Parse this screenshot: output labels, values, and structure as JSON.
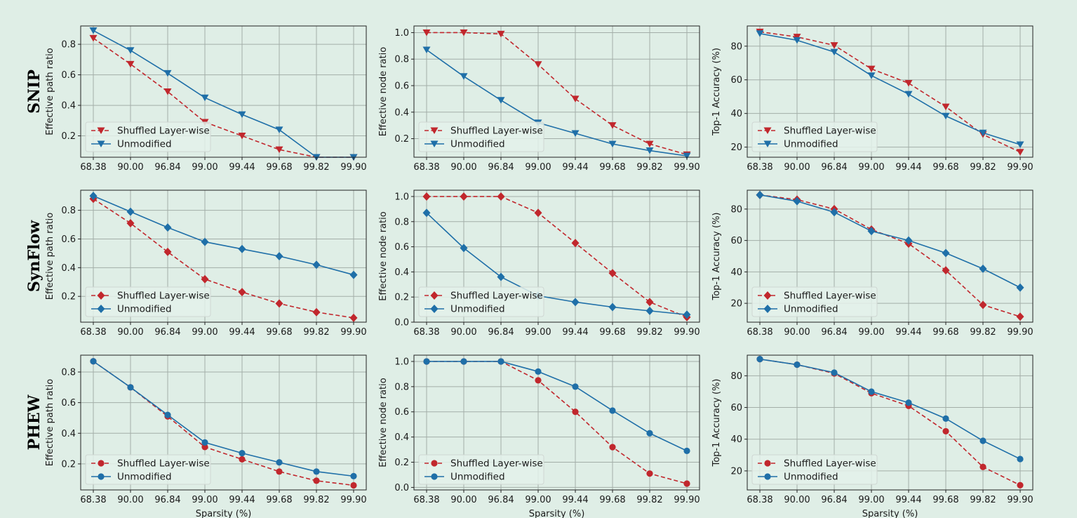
{
  "chart_data": {
    "type": "line",
    "layout": "3x3 grid",
    "row_labels": [
      "SNIP",
      "SynFlow",
      "PHEW"
    ],
    "x_tick_labels": [
      "68.38",
      "90.00",
      "96.84",
      "99.00",
      "99.44",
      "99.68",
      "99.82",
      "99.90"
    ],
    "x_axis_scale": "categorical (evenly spaced)",
    "xlabel": "Sparsity (%)",
    "grid": true,
    "legend_placement": "lower-left",
    "series_names": [
      "Shuffled Layer-wise",
      "Unmodified"
    ],
    "series_colors": {
      "Shuffled Layer-wise": "#c1272d",
      "Unmodified": "#1f6fa8"
    },
    "series_styles": {
      "Shuffled Layer-wise": "dashed",
      "Unmodified": "solid"
    },
    "row_markers": {
      "SNIP": "triangle-down",
      "SynFlow": "diamond",
      "PHEW": "circle"
    },
    "panels": [
      {
        "row": 0,
        "col": 0,
        "ylabel": "Effective path ratio",
        "ylim": [
          0.06,
          0.92
        ],
        "yticks": [
          0.2,
          0.4,
          0.6,
          0.8
        ],
        "ytick_labels": [
          "0.2",
          "0.4",
          "0.6",
          "0.8"
        ],
        "series": [
          {
            "name": "Shuffled Layer-wise",
            "values": [
              0.84,
              0.67,
              0.49,
              0.29,
              0.2,
              0.11,
              0.06,
              0.06
            ]
          },
          {
            "name": "Unmodified",
            "values": [
              0.89,
              0.76,
              0.61,
              0.45,
              0.34,
              0.24,
              0.06,
              0.06
            ]
          }
        ]
      },
      {
        "row": 0,
        "col": 1,
        "ylabel": "Effective node ratio",
        "ylim": [
          0.06,
          1.05
        ],
        "yticks": [
          0.2,
          0.4,
          0.6,
          0.8,
          1.0
        ],
        "ytick_labels": [
          "0.2",
          "0.4",
          "0.6",
          "0.8",
          "1.0"
        ],
        "series": [
          {
            "name": "Shuffled Layer-wise",
            "values": [
              1.0,
              1.0,
              0.99,
              0.76,
              0.5,
              0.3,
              0.16,
              0.08
            ]
          },
          {
            "name": "Unmodified",
            "values": [
              0.87,
              0.67,
              0.49,
              0.32,
              0.24,
              0.16,
              0.11,
              0.07
            ]
          }
        ]
      },
      {
        "row": 0,
        "col": 2,
        "ylabel": "Top-1 Accuracy (%)",
        "ylim": [
          14,
          92
        ],
        "yticks": [
          20,
          40,
          60,
          80
        ],
        "ytick_labels": [
          "20",
          "40",
          "60",
          "80"
        ],
        "series": [
          {
            "name": "Shuffled Layer-wise",
            "values": [
              88.5,
              85.5,
              80.5,
              66.5,
              58,
              44,
              27.5,
              17
            ]
          },
          {
            "name": "Unmodified",
            "values": [
              87.5,
              83.5,
              76.5,
              62.5,
              51.5,
              38.5,
              28.5,
              21.5
            ]
          }
        ]
      },
      {
        "row": 1,
        "col": 0,
        "ylabel": "Effective path ratio",
        "ylim": [
          0.02,
          0.94
        ],
        "yticks": [
          0.2,
          0.4,
          0.6,
          0.8
        ],
        "ytick_labels": [
          "0.2",
          "0.4",
          "0.6",
          "0.8"
        ],
        "series": [
          {
            "name": "Shuffled Layer-wise",
            "values": [
              0.88,
              0.71,
              0.51,
              0.32,
              0.23,
              0.15,
              0.09,
              0.05
            ]
          },
          {
            "name": "Unmodified",
            "values": [
              0.9,
              0.79,
              0.68,
              0.58,
              0.53,
              0.48,
              0.42,
              0.35
            ]
          }
        ]
      },
      {
        "row": 1,
        "col": 1,
        "ylabel": "Effective node ratio",
        "ylim": [
          0.0,
          1.05
        ],
        "yticks": [
          0.0,
          0.2,
          0.4,
          0.6,
          0.8,
          1.0
        ],
        "ytick_labels": [
          "0.0",
          "0.2",
          "0.4",
          "0.6",
          "0.8",
          "1.0"
        ],
        "series": [
          {
            "name": "Shuffled Layer-wise",
            "values": [
              1.0,
              1.0,
              1.0,
              0.87,
              0.63,
              0.39,
              0.16,
              0.04
            ]
          },
          {
            "name": "Unmodified",
            "values": [
              0.87,
              0.59,
              0.36,
              0.21,
              0.16,
              0.12,
              0.09,
              0.06
            ]
          }
        ]
      },
      {
        "row": 1,
        "col": 2,
        "ylabel": "Top-1 Accuracy (%)",
        "ylim": [
          8,
          92
        ],
        "yticks": [
          20,
          40,
          60,
          80
        ],
        "ytick_labels": [
          "20",
          "40",
          "60",
          "80"
        ],
        "series": [
          {
            "name": "Shuffled Layer-wise",
            "values": [
              89,
              86,
              80,
              67,
              58,
              41,
              19,
              11.5
            ]
          },
          {
            "name": "Unmodified",
            "values": [
              89,
              85,
              78,
              66,
              60,
              52,
              42,
              30
            ]
          }
        ]
      },
      {
        "row": 2,
        "col": 0,
        "ylabel": "Effective path ratio",
        "ylim": [
          0.03,
          0.91
        ],
        "yticks": [
          0.2,
          0.4,
          0.6,
          0.8
        ],
        "ytick_labels": [
          "0.2",
          "0.4",
          "0.6",
          "0.8"
        ],
        "series": [
          {
            "name": "Shuffled Layer-wise",
            "values": [
              0.87,
              0.7,
              0.51,
              0.31,
              0.23,
              0.15,
              0.09,
              0.06
            ]
          },
          {
            "name": "Unmodified",
            "values": [
              0.87,
              0.7,
              0.52,
              0.34,
              0.27,
              0.21,
              0.15,
              0.12
            ]
          }
        ]
      },
      {
        "row": 2,
        "col": 1,
        "ylabel": "Effective node ratio",
        "ylim": [
          -0.02,
          1.05
        ],
        "yticks": [
          0.0,
          0.2,
          0.4,
          0.6,
          0.8,
          1.0
        ],
        "ytick_labels": [
          "0.0",
          "0.2",
          "0.4",
          "0.6",
          "0.8",
          "1.0"
        ],
        "series": [
          {
            "name": "Shuffled Layer-wise",
            "values": [
              1.0,
              1.0,
              1.0,
              0.85,
              0.6,
              0.32,
              0.11,
              0.03
            ]
          },
          {
            "name": "Unmodified",
            "values": [
              1.0,
              1.0,
              1.0,
              0.92,
              0.8,
              0.61,
              0.43,
              0.29
            ]
          }
        ]
      },
      {
        "row": 2,
        "col": 2,
        "ylabel": "Top-1 Accuracy (%)",
        "ylim": [
          8,
          93
        ],
        "yticks": [
          20,
          40,
          60,
          80
        ],
        "ytick_labels": [
          "20",
          "40",
          "60",
          "80"
        ],
        "series": [
          {
            "name": "Shuffled Layer-wise",
            "values": [
              90.5,
              87,
              81.5,
              69,
              61,
              45,
              22.5,
              11
            ]
          },
          {
            "name": "Unmodified",
            "values": [
              90.5,
              87,
              82,
              70,
              63,
              53,
              39,
              27.5
            ]
          }
        ]
      }
    ]
  }
}
